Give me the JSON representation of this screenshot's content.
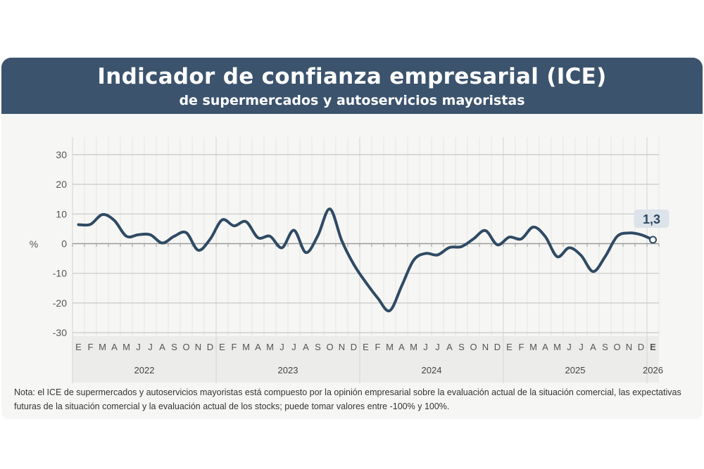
{
  "header": {
    "title": "Indicador de confianza empresarial (ICE)",
    "subtitle": "de supermercados y autoservicios mayoristas"
  },
  "chart_data": {
    "type": "line",
    "title": "Indicador de confianza empresarial (ICE)",
    "subtitle": "de supermercados y autoservicios mayoristas",
    "ylabel": "%",
    "ylim": [
      -30,
      30
    ],
    "yticks": [
      30,
      20,
      10,
      0,
      -10,
      -20,
      -30
    ],
    "grid": true,
    "month_labels": [
      "E",
      "F",
      "M",
      "A",
      "M",
      "J",
      "J",
      "A",
      "S",
      "O",
      "N",
      "D",
      "E",
      "F",
      "M",
      "A",
      "M",
      "J",
      "J",
      "A",
      "S",
      "O",
      "N",
      "D",
      "E",
      "F",
      "M",
      "A",
      "M",
      "J",
      "J",
      "A",
      "S",
      "O",
      "N",
      "D",
      "E",
      "F",
      "M",
      "A",
      "M",
      "J",
      "J",
      "A",
      "S",
      "O",
      "N",
      "D",
      "E"
    ],
    "year_labels": [
      "2022",
      "2023",
      "2024",
      "2025",
      "2026"
    ],
    "values": [
      6.4,
      6.5,
      9.8,
      7.8,
      2.5,
      3.0,
      3.0,
      0.2,
      2.5,
      3.7,
      -2.2,
      1.5,
      8.0,
      6.0,
      7.4,
      2.0,
      2.5,
      -1.4,
      4.5,
      -3.0,
      2.7,
      11.7,
      1.0,
      -7.0,
      -13.0,
      -18.3,
      -22.6,
      -14.3,
      -5.6,
      -3.3,
      -3.8,
      -1.3,
      -1.0,
      1.6,
      4.4,
      -0.4,
      2.2,
      1.6,
      5.6,
      2.4,
      -4.4,
      -1.4,
      -4.0,
      -9.4,
      -4.4,
      2.4,
      3.6,
      3.0,
      1.3
    ],
    "last_value_label": "1,3",
    "line_color": "#2f4a63",
    "header_color": "#3b536d"
  },
  "note": "Nota: el ICE de supermercados y autoservicios mayoristas está compuesto por la opinión empresarial sobre la evaluación actual de la situación comercial, las expectativas futuras de la situación comercial y la evaluación actual de los stocks; puede tomar valores entre -100% y 100%."
}
